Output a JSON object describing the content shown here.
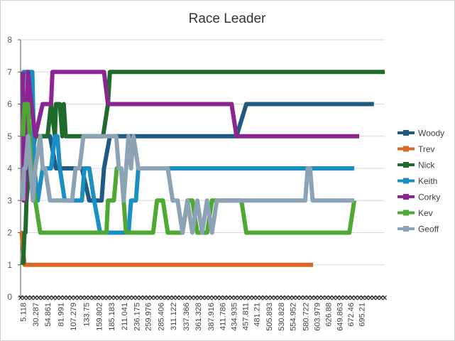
{
  "chart_data": {
    "type": "line",
    "title": "Race Leader",
    "xlabel": "",
    "ylabel": "",
    "ylim": [
      0,
      8
    ],
    "yticks": [
      "0",
      "1",
      "2",
      "3",
      "4",
      "5",
      "6",
      "7",
      "8"
    ],
    "x_tick_labels": [
      "5.118",
      "30.287",
      "54.861",
      "81.991",
      "107.279",
      "133.75",
      "159.802",
      "185.183",
      "211.041",
      "236.175",
      "259.976",
      "285.406",
      "311.122",
      "337.366",
      "361.328",
      "387.916",
      "411.786",
      "434.935",
      "457.811",
      "481.21",
      "505.893",
      "530.828",
      "554.952",
      "580.722",
      "603.979",
      "626.88",
      "649.863",
      "672.46",
      "695.21"
    ],
    "x_tick_positions": [
      5.118,
      30.287,
      54.861,
      81.991,
      107.279,
      133.75,
      159.802,
      185.183,
      211.041,
      236.175,
      259.976,
      285.406,
      311.122,
      337.366,
      361.328,
      387.916,
      411.786,
      434.935,
      457.811,
      481.21,
      505.893,
      530.828,
      554.952,
      580.722,
      603.979,
      626.88,
      649.863,
      672.46,
      695.21
    ],
    "xlim": [
      0,
      742
    ],
    "grid": "horizontal",
    "legend": "right",
    "series": [
      {
        "name": "Woody",
        "color": "#1f5a82",
        "points": [
          [
            5,
            6
          ],
          [
            7,
            5
          ],
          [
            10,
            4
          ],
          [
            14,
            5
          ],
          [
            30,
            5
          ],
          [
            60,
            5
          ],
          [
            72,
            4
          ],
          [
            80,
            4
          ],
          [
            85,
            4
          ],
          [
            95,
            4
          ],
          [
            110,
            4
          ],
          [
            125,
            4
          ],
          [
            140,
            3
          ],
          [
            155,
            3
          ],
          [
            165,
            3
          ],
          [
            170,
            4
          ],
          [
            182,
            5
          ],
          [
            196,
            5
          ],
          [
            200,
            5
          ],
          [
            210,
            5
          ],
          [
            230,
            5
          ],
          [
            260,
            5
          ],
          [
            300,
            5
          ],
          [
            350,
            5
          ],
          [
            430,
            5
          ],
          [
            440,
            5
          ],
          [
            460,
            6
          ],
          [
            500,
            6
          ],
          [
            720,
            6
          ]
        ]
      },
      {
        "name": "Trev",
        "color": "#d9692a",
        "points": [
          [
            0,
            2
          ],
          [
            2,
            2
          ],
          [
            8,
            1
          ],
          [
            200,
            1
          ],
          [
            400,
            1
          ],
          [
            560,
            1
          ],
          [
            596,
            1
          ]
        ]
      },
      {
        "name": "Nick",
        "color": "#1e6b2c",
        "points": [
          [
            5,
            1
          ],
          [
            8,
            2
          ],
          [
            10,
            2
          ],
          [
            12,
            3
          ],
          [
            18,
            4
          ],
          [
            30,
            5
          ],
          [
            46,
            5
          ],
          [
            55,
            5
          ],
          [
            62,
            6
          ],
          [
            70,
            5
          ],
          [
            72,
            6
          ],
          [
            80,
            6
          ],
          [
            85,
            5
          ],
          [
            88,
            6
          ],
          [
            92,
            5
          ],
          [
            108,
            5
          ],
          [
            150,
            5
          ],
          [
            160,
            5
          ],
          [
            168,
            5
          ],
          [
            178,
            6
          ],
          [
            182,
            7
          ],
          [
            250,
            7
          ],
          [
            500,
            7
          ],
          [
            742,
            7
          ]
        ]
      },
      {
        "name": "Keith",
        "color": "#1a8fc4",
        "points": [
          [
            4,
            6
          ],
          [
            6,
            7
          ],
          [
            12,
            7
          ],
          [
            20,
            7
          ],
          [
            24,
            7
          ],
          [
            28,
            4
          ],
          [
            35,
            3
          ],
          [
            45,
            4
          ],
          [
            50,
            4
          ],
          [
            60,
            4
          ],
          [
            62,
            4
          ],
          [
            70,
            5
          ],
          [
            75,
            5
          ],
          [
            80,
            4
          ],
          [
            90,
            3
          ],
          [
            110,
            3
          ],
          [
            125,
            3
          ],
          [
            130,
            4
          ],
          [
            140,
            4
          ],
          [
            150,
            3
          ],
          [
            162,
            2
          ],
          [
            190,
            2
          ],
          [
            220,
            2
          ],
          [
            225,
            3
          ],
          [
            235,
            3
          ],
          [
            240,
            4
          ],
          [
            280,
            4
          ],
          [
            400,
            4
          ],
          [
            520,
            4
          ],
          [
            680,
            4
          ]
        ]
      },
      {
        "name": "Corky",
        "color": "#8b2591",
        "points": [
          [
            5,
            7
          ],
          [
            6,
            3
          ],
          [
            9,
            3
          ],
          [
            15,
            7
          ],
          [
            22,
            6
          ],
          [
            30,
            5
          ],
          [
            45,
            6
          ],
          [
            62,
            6
          ],
          [
            65,
            7
          ],
          [
            90,
            7
          ],
          [
            140,
            7
          ],
          [
            170,
            7
          ],
          [
            178,
            6
          ],
          [
            200,
            6
          ],
          [
            320,
            6
          ],
          [
            430,
            6
          ],
          [
            440,
            5
          ],
          [
            520,
            5
          ],
          [
            690,
            5
          ]
        ]
      },
      {
        "name": "Kev",
        "color": "#4ea832",
        "points": [
          [
            5,
            5
          ],
          [
            8,
            6
          ],
          [
            15,
            6
          ],
          [
            22,
            4
          ],
          [
            30,
            3
          ],
          [
            40,
            2
          ],
          [
            80,
            2
          ],
          [
            120,
            2
          ],
          [
            150,
            2
          ],
          [
            175,
            2
          ],
          [
            178,
            3
          ],
          [
            185,
            3
          ],
          [
            190,
            3
          ],
          [
            196,
            4
          ],
          [
            205,
            4
          ],
          [
            210,
            3
          ],
          [
            215,
            2
          ],
          [
            250,
            2
          ],
          [
            270,
            2
          ],
          [
            278,
            3
          ],
          [
            290,
            3
          ],
          [
            300,
            2
          ],
          [
            330,
            2
          ],
          [
            340,
            3
          ],
          [
            350,
            3
          ],
          [
            360,
            2
          ],
          [
            380,
            2
          ],
          [
            390,
            3
          ],
          [
            420,
            3
          ],
          [
            450,
            3
          ],
          [
            460,
            2
          ],
          [
            500,
            2
          ],
          [
            600,
            2
          ],
          [
            670,
            2
          ],
          [
            680,
            3
          ]
        ]
      },
      {
        "name": "Geoff",
        "color": "#8ca3b5",
        "points": [
          [
            5,
            3
          ],
          [
            7,
            4
          ],
          [
            10,
            4
          ],
          [
            15,
            5
          ],
          [
            20,
            4
          ],
          [
            25,
            3
          ],
          [
            30,
            4
          ],
          [
            40,
            5
          ],
          [
            45,
            4
          ],
          [
            50,
            4
          ],
          [
            60,
            3
          ],
          [
            70,
            3
          ],
          [
            105,
            3
          ],
          [
            112,
            4
          ],
          [
            120,
            4
          ],
          [
            128,
            5
          ],
          [
            150,
            5
          ],
          [
            195,
            5
          ],
          [
            200,
            4
          ],
          [
            205,
            4
          ],
          [
            210,
            3
          ],
          [
            215,
            4
          ],
          [
            220,
            5
          ],
          [
            225,
            4
          ],
          [
            230,
            5
          ],
          [
            240,
            4
          ],
          [
            290,
            4
          ],
          [
            300,
            4
          ],
          [
            310,
            3
          ],
          [
            320,
            3
          ],
          [
            330,
            2
          ],
          [
            340,
            3
          ],
          [
            350,
            2
          ],
          [
            360,
            3
          ],
          [
            370,
            2
          ],
          [
            380,
            3
          ],
          [
            390,
            2
          ],
          [
            400,
            3
          ],
          [
            410,
            3
          ],
          [
            420,
            3
          ],
          [
            425,
            3
          ],
          [
            440,
            3
          ],
          [
            580,
            3
          ],
          [
            585,
            4
          ],
          [
            590,
            4
          ],
          [
            595,
            3
          ],
          [
            680,
            3
          ]
        ]
      }
    ]
  }
}
